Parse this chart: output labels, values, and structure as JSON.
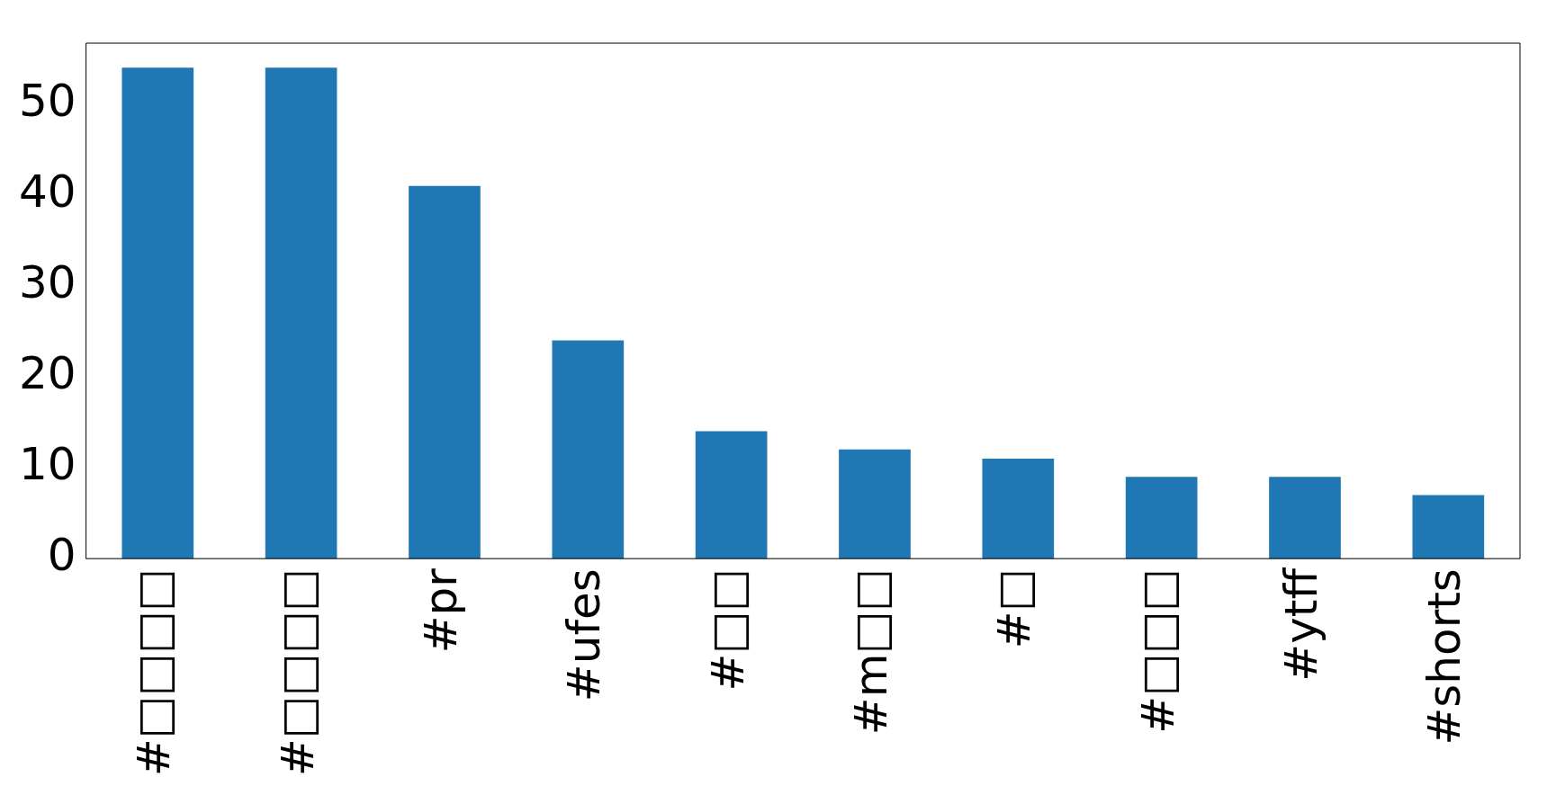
{
  "chart_data": {
    "type": "bar",
    "categories": [
      "#□□□□",
      "#□□□□",
      "#pr",
      "#ufes",
      "#□□",
      "#m□□",
      "#□",
      "#□□□",
      "#ytff",
      "#shorts"
    ],
    "values": [
      54,
      54,
      41,
      24,
      14,
      12,
      11,
      9,
      9,
      7
    ],
    "color": "#1f77b4",
    "ylim": [
      0,
      56.7
    ],
    "yticks": [
      0,
      10,
      20,
      30,
      40,
      50
    ],
    "grid": false,
    "legend": false
  }
}
